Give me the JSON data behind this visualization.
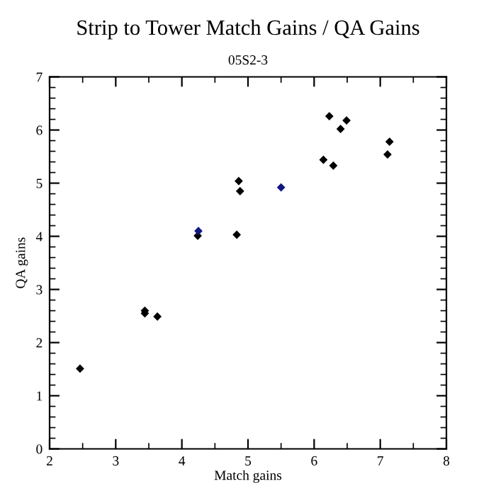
{
  "chart_data": {
    "type": "scatter",
    "title": "Strip to Tower Match Gains / QA Gains",
    "subtitle": "05S2-3",
    "xlabel": "Match gains",
    "ylabel": "QA gains",
    "x": [
      2.46,
      3.44,
      3.44,
      3.63,
      4.24,
      4.25,
      4.83,
      4.86,
      4.88,
      5.5,
      6.14,
      6.23,
      6.29,
      6.4,
      6.49,
      7.14,
      7.11
    ],
    "values": [
      1.51,
      2.6,
      2.55,
      2.49,
      4.01,
      4.1,
      4.03,
      5.04,
      4.85,
      4.92,
      5.44,
      6.26,
      5.33,
      6.02,
      6.18,
      5.78,
      5.54
    ],
    "colors": [
      "#000000",
      "#000000",
      "#000000",
      "#000000",
      "#000000",
      "#101880",
      "#000000",
      "#000000",
      "#000000",
      "#101880",
      "#000000",
      "#000000",
      "#000000",
      "#000000",
      "#000000",
      "#000000",
      "#000000"
    ],
    "marker": "diamond",
    "xlim": [
      2,
      8
    ],
    "xticks": [
      2,
      3,
      4,
      5,
      6,
      7,
      8
    ],
    "ylim": [
      0,
      7
    ],
    "yticks": [
      0,
      1,
      2,
      3,
      4,
      5,
      6,
      7
    ],
    "grid": false,
    "legend": false
  }
}
